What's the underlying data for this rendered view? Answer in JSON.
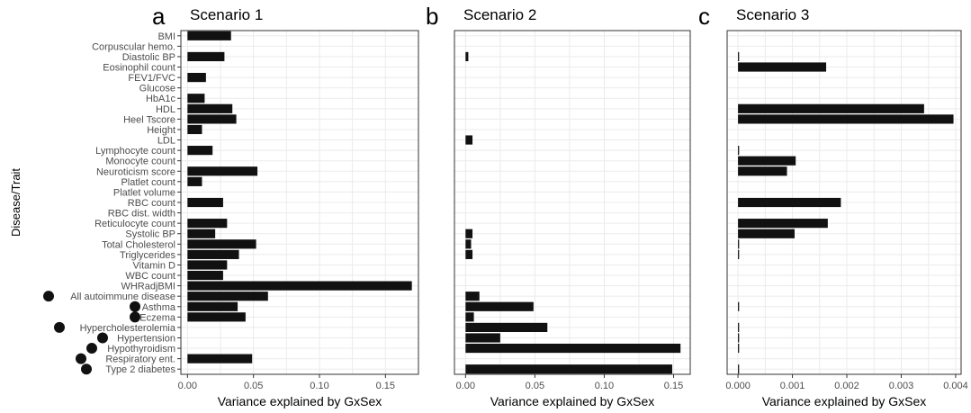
{
  "ylabel": "Disease/Trait",
  "categories": [
    "BMI",
    "Corpuscular hemo.",
    "Diastolic BP",
    "Eosinophil count",
    "FEV1/FVC",
    "Glucose",
    "HbA1c",
    "HDL",
    "Heel Tscore",
    "Height",
    "LDL",
    "Lymphocyte count",
    "Monocyte count",
    "Neuroticism score",
    "Platlet count",
    "Platlet volume",
    "RBC count",
    "RBC dist. width",
    "Reticulocyte count",
    "Systolic BP",
    "Total Cholesterol",
    "Triglycerides",
    "Vitamin D",
    "WBC count",
    "WHRadjBMI",
    "All autoimmune disease",
    "Asthma",
    "Eczema",
    "Hypercholesterolemia",
    "Hypertension",
    "Hypothyroidism",
    "Respiratory ent.",
    "Type 2 diabetes"
  ],
  "marked_categories": [
    "All autoimmune disease",
    "Asthma",
    "Eczema",
    "Hypercholesterolemia",
    "Hypertension",
    "Hypothyroidism",
    "Respiratory ent.",
    "Type 2 diabetes"
  ],
  "colors": {
    "bar": "#111111",
    "panel_bg": "#ffffff",
    "grid": "#ebebeb",
    "border": "#333333",
    "text": "#4d4d4d"
  },
  "chart_data": [
    {
      "type": "bar",
      "orientation": "horizontal",
      "letter": "a",
      "title": "Scenario 1",
      "xlabel": "Variance explained by GxSex",
      "xlim": [
        -0.005,
        0.175
      ],
      "xticks": [
        0.0,
        0.05,
        0.1,
        0.15
      ],
      "xtick_labels": [
        "0.00",
        "0.05",
        "0.10",
        "0.15"
      ],
      "grid": true,
      "values": [
        0.033,
        0,
        0.028,
        0,
        0.014,
        0,
        0.013,
        0.034,
        0.037,
        0.011,
        0,
        0.019,
        0,
        0.053,
        0.011,
        0,
        0.027,
        0,
        0.03,
        0.021,
        0.052,
        0.039,
        0.03,
        0.027,
        0.17,
        0.061,
        0.038,
        0.044,
        0,
        0,
        0,
        0.049,
        0
      ]
    },
    {
      "type": "bar",
      "orientation": "horizontal",
      "letter": "b",
      "title": "Scenario 2",
      "xlabel": "Variance explained by GxSex",
      "xlim": [
        -0.008,
        0.162
      ],
      "xticks": [
        0.0,
        0.05,
        0.1,
        0.15
      ],
      "xtick_labels": [
        "0.00",
        "0.05",
        "0.10",
        "0.15"
      ],
      "grid": true,
      "values": [
        0,
        0,
        0.002,
        0,
        0,
        0,
        0,
        0,
        0,
        0,
        0.005,
        0,
        0,
        0,
        0,
        0,
        0,
        0,
        0,
        0.005,
        0.004,
        0.005,
        0,
        0,
        0,
        0.01,
        0.049,
        0.006,
        0.059,
        0.025,
        0.155,
        0,
        0.149
      ]
    },
    {
      "type": "bar",
      "orientation": "horizontal",
      "letter": "c",
      "title": "Scenario 3",
      "xlabel": "Variance explained by GxSex",
      "xlim": [
        -0.0002,
        0.0041
      ],
      "xticks": [
        0.0,
        0.001,
        0.002,
        0.003,
        0.004
      ],
      "xtick_labels": [
        "0.000",
        "0.001",
        "0.002",
        "0.003",
        "0.004"
      ],
      "grid": true,
      "values": [
        0,
        0,
        2e-05,
        0.00162,
        0,
        0,
        0,
        0.00342,
        0.00396,
        0,
        0,
        2e-05,
        0.00106,
        0.0009,
        0,
        0,
        0.00189,
        0,
        0.00165,
        0.00104,
        2e-05,
        2e-05,
        0,
        0,
        0,
        0,
        2e-05,
        0,
        2e-05,
        2e-05,
        2e-05,
        0,
        2e-05
      ]
    }
  ]
}
